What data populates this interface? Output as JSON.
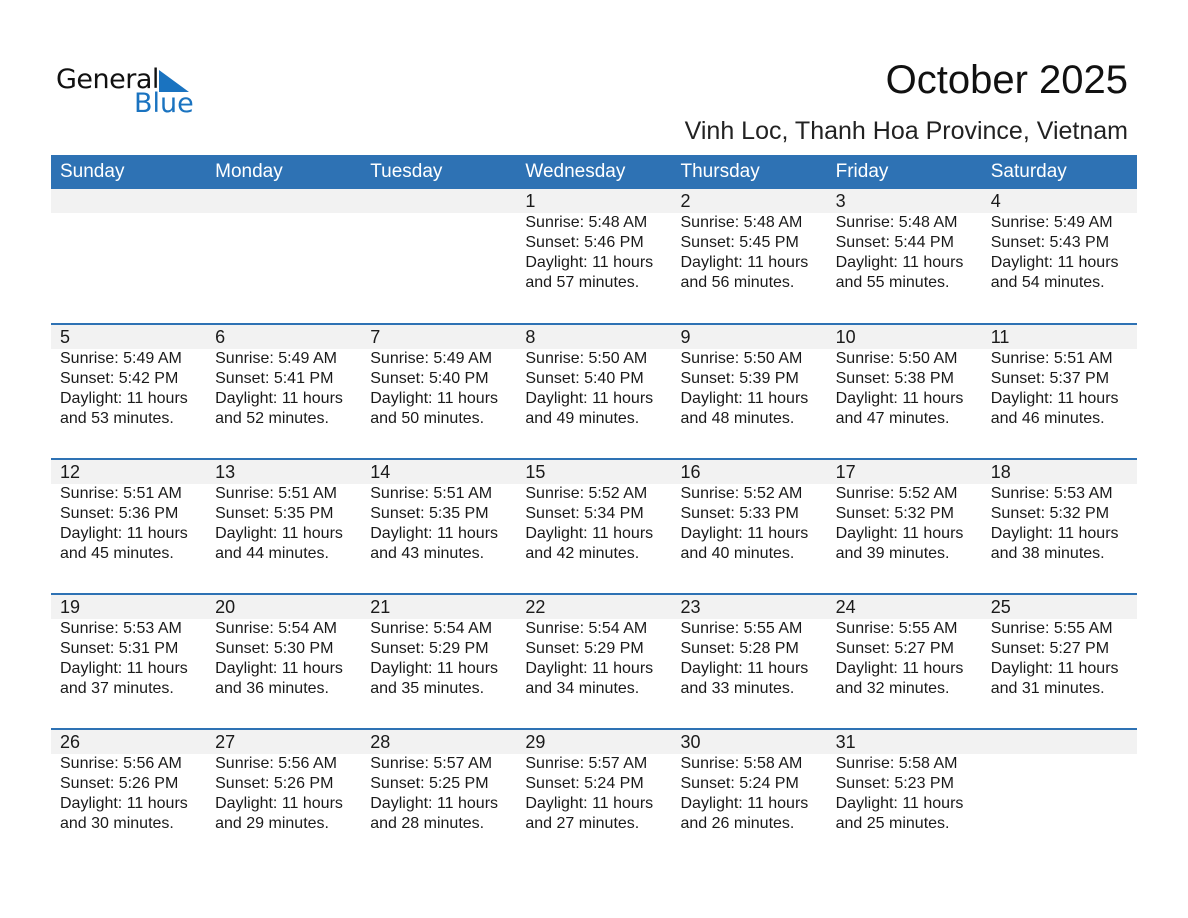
{
  "logo": {
    "word1": "General",
    "word2": "Blue"
  },
  "title": "October 2025",
  "subtitle": "Vinh Loc, Thanh Hoa Province, Vietnam",
  "colors": {
    "header": "#2e72b4",
    "strip": "#f2f2f2",
    "logo_blue": "#1a73c0"
  },
  "weekdays": [
    "Sunday",
    "Monday",
    "Tuesday",
    "Wednesday",
    "Thursday",
    "Friday",
    "Saturday"
  ],
  "weeks": [
    [
      null,
      null,
      null,
      {
        "day": "1",
        "sunrise": "Sunrise: 5:48 AM",
        "sunset": "Sunset: 5:46 PM",
        "daylight1": "Daylight: 11 hours",
        "daylight2": "and 57 minutes."
      },
      {
        "day": "2",
        "sunrise": "Sunrise: 5:48 AM",
        "sunset": "Sunset: 5:45 PM",
        "daylight1": "Daylight: 11 hours",
        "daylight2": "and 56 minutes."
      },
      {
        "day": "3",
        "sunrise": "Sunrise: 5:48 AM",
        "sunset": "Sunset: 5:44 PM",
        "daylight1": "Daylight: 11 hours",
        "daylight2": "and 55 minutes."
      },
      {
        "day": "4",
        "sunrise": "Sunrise: 5:49 AM",
        "sunset": "Sunset: 5:43 PM",
        "daylight1": "Daylight: 11 hours",
        "daylight2": "and 54 minutes."
      }
    ],
    [
      {
        "day": "5",
        "sunrise": "Sunrise: 5:49 AM",
        "sunset": "Sunset: 5:42 PM",
        "daylight1": "Daylight: 11 hours",
        "daylight2": "and 53 minutes."
      },
      {
        "day": "6",
        "sunrise": "Sunrise: 5:49 AM",
        "sunset": "Sunset: 5:41 PM",
        "daylight1": "Daylight: 11 hours",
        "daylight2": "and 52 minutes."
      },
      {
        "day": "7",
        "sunrise": "Sunrise: 5:49 AM",
        "sunset": "Sunset: 5:40 PM",
        "daylight1": "Daylight: 11 hours",
        "daylight2": "and 50 minutes."
      },
      {
        "day": "8",
        "sunrise": "Sunrise: 5:50 AM",
        "sunset": "Sunset: 5:40 PM",
        "daylight1": "Daylight: 11 hours",
        "daylight2": "and 49 minutes."
      },
      {
        "day": "9",
        "sunrise": "Sunrise: 5:50 AM",
        "sunset": "Sunset: 5:39 PM",
        "daylight1": "Daylight: 11 hours",
        "daylight2": "and 48 minutes."
      },
      {
        "day": "10",
        "sunrise": "Sunrise: 5:50 AM",
        "sunset": "Sunset: 5:38 PM",
        "daylight1": "Daylight: 11 hours",
        "daylight2": "and 47 minutes."
      },
      {
        "day": "11",
        "sunrise": "Sunrise: 5:51 AM",
        "sunset": "Sunset: 5:37 PM",
        "daylight1": "Daylight: 11 hours",
        "daylight2": "and 46 minutes."
      }
    ],
    [
      {
        "day": "12",
        "sunrise": "Sunrise: 5:51 AM",
        "sunset": "Sunset: 5:36 PM",
        "daylight1": "Daylight: 11 hours",
        "daylight2": "and 45 minutes."
      },
      {
        "day": "13",
        "sunrise": "Sunrise: 5:51 AM",
        "sunset": "Sunset: 5:35 PM",
        "daylight1": "Daylight: 11 hours",
        "daylight2": "and 44 minutes."
      },
      {
        "day": "14",
        "sunrise": "Sunrise: 5:51 AM",
        "sunset": "Sunset: 5:35 PM",
        "daylight1": "Daylight: 11 hours",
        "daylight2": "and 43 minutes."
      },
      {
        "day": "15",
        "sunrise": "Sunrise: 5:52 AM",
        "sunset": "Sunset: 5:34 PM",
        "daylight1": "Daylight: 11 hours",
        "daylight2": "and 42 minutes."
      },
      {
        "day": "16",
        "sunrise": "Sunrise: 5:52 AM",
        "sunset": "Sunset: 5:33 PM",
        "daylight1": "Daylight: 11 hours",
        "daylight2": "and 40 minutes."
      },
      {
        "day": "17",
        "sunrise": "Sunrise: 5:52 AM",
        "sunset": "Sunset: 5:32 PM",
        "daylight1": "Daylight: 11 hours",
        "daylight2": "and 39 minutes."
      },
      {
        "day": "18",
        "sunrise": "Sunrise: 5:53 AM",
        "sunset": "Sunset: 5:32 PM",
        "daylight1": "Daylight: 11 hours",
        "daylight2": "and 38 minutes."
      }
    ],
    [
      {
        "day": "19",
        "sunrise": "Sunrise: 5:53 AM",
        "sunset": "Sunset: 5:31 PM",
        "daylight1": "Daylight: 11 hours",
        "daylight2": "and 37 minutes."
      },
      {
        "day": "20",
        "sunrise": "Sunrise: 5:54 AM",
        "sunset": "Sunset: 5:30 PM",
        "daylight1": "Daylight: 11 hours",
        "daylight2": "and 36 minutes."
      },
      {
        "day": "21",
        "sunrise": "Sunrise: 5:54 AM",
        "sunset": "Sunset: 5:29 PM",
        "daylight1": "Daylight: 11 hours",
        "daylight2": "and 35 minutes."
      },
      {
        "day": "22",
        "sunrise": "Sunrise: 5:54 AM",
        "sunset": "Sunset: 5:29 PM",
        "daylight1": "Daylight: 11 hours",
        "daylight2": "and 34 minutes."
      },
      {
        "day": "23",
        "sunrise": "Sunrise: 5:55 AM",
        "sunset": "Sunset: 5:28 PM",
        "daylight1": "Daylight: 11 hours",
        "daylight2": "and 33 minutes."
      },
      {
        "day": "24",
        "sunrise": "Sunrise: 5:55 AM",
        "sunset": "Sunset: 5:27 PM",
        "daylight1": "Daylight: 11 hours",
        "daylight2": "and 32 minutes."
      },
      {
        "day": "25",
        "sunrise": "Sunrise: 5:55 AM",
        "sunset": "Sunset: 5:27 PM",
        "daylight1": "Daylight: 11 hours",
        "daylight2": "and 31 minutes."
      }
    ],
    [
      {
        "day": "26",
        "sunrise": "Sunrise: 5:56 AM",
        "sunset": "Sunset: 5:26 PM",
        "daylight1": "Daylight: 11 hours",
        "daylight2": "and 30 minutes."
      },
      {
        "day": "27",
        "sunrise": "Sunrise: 5:56 AM",
        "sunset": "Sunset: 5:26 PM",
        "daylight1": "Daylight: 11 hours",
        "daylight2": "and 29 minutes."
      },
      {
        "day": "28",
        "sunrise": "Sunrise: 5:57 AM",
        "sunset": "Sunset: 5:25 PM",
        "daylight1": "Daylight: 11 hours",
        "daylight2": "and 28 minutes."
      },
      {
        "day": "29",
        "sunrise": "Sunrise: 5:57 AM",
        "sunset": "Sunset: 5:24 PM",
        "daylight1": "Daylight: 11 hours",
        "daylight2": "and 27 minutes."
      },
      {
        "day": "30",
        "sunrise": "Sunrise: 5:58 AM",
        "sunset": "Sunset: 5:24 PM",
        "daylight1": "Daylight: 11 hours",
        "daylight2": "and 26 minutes."
      },
      {
        "day": "31",
        "sunrise": "Sunrise: 5:58 AM",
        "sunset": "Sunset: 5:23 PM",
        "daylight1": "Daylight: 11 hours",
        "daylight2": "and 25 minutes."
      },
      null
    ]
  ]
}
